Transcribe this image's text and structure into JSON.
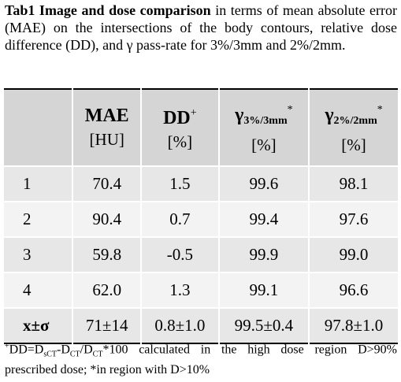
{
  "caption": {
    "bold": "Tab1 Image and dose comparison",
    "text": "in terms of mean absolute error (MAE) on the intersections of the body contours, relative dose difference (DD), and γ pass-rate for 3%/3mm and 2%/2mm."
  },
  "table": {
    "header": [
      {
        "name": "MAE",
        "unit": "[HU]"
      },
      {
        "name": "DD",
        "sup": "+",
        "unit": "[%]"
      },
      {
        "name": "γ",
        "sub": "3%/3mm",
        "sup": "*",
        "unit": "[%]"
      },
      {
        "name": "γ",
        "sub": "2%/2mm",
        "sup": "*",
        "unit": "[%]"
      }
    ],
    "rows": [
      [
        "1",
        "70.4",
        "1.5",
        "99.6",
        "98.1"
      ],
      [
        "2",
        "90.4",
        "0.7",
        "99.4",
        "97.6"
      ],
      [
        "3",
        "59.8",
        "-0.5",
        "99.9",
        "99.0"
      ],
      [
        "4",
        "62.0",
        "1.3",
        "99.1",
        "96.6"
      ],
      [
        "x±σ",
        "71±14",
        "0.8±1.0",
        "99.5±0.4",
        "97.8±1.0"
      ]
    ]
  },
  "footnote": [
    {
      "sup": "+"
    },
    {
      "text": "DD=D"
    },
    {
      "sub": "sCT"
    },
    {
      "text": "-D"
    },
    {
      "sub": "CT"
    },
    {
      "text": "/D"
    },
    {
      "sub": "CT"
    },
    {
      "text": "*100 calculated in the high dose region D>90% prescribed dose; *in region with D>10%"
    }
  ]
}
